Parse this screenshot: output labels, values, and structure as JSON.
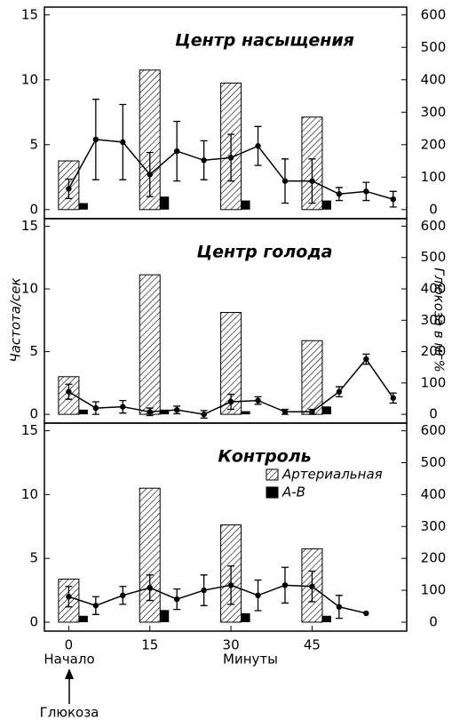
{
  "figure": {
    "ylabel": "Частота/сек",
    "y2label": "Глюкоза в мг%",
    "xlabel": "Минуты",
    "annotations": [
      "Начало",
      "Глюкоза"
    ]
  },
  "chart_data": [
    {
      "type": "combo",
      "title": "Центр насыщения",
      "xlim": [
        -4.5,
        62.5
      ],
      "ylim": [
        -0.7,
        15.6
      ],
      "yticks": [
        0,
        5,
        10,
        15
      ],
      "y2lim": [
        -28,
        624
      ],
      "y2ticks": [
        0,
        100,
        200,
        300,
        400,
        500,
        600
      ],
      "legend": false,
      "series": [
        {
          "name": "Артериальная",
          "type": "bar",
          "axis": "y2",
          "pattern": "hatch",
          "color": "#000",
          "x": [
            0,
            15,
            30,
            45
          ],
          "values": [
            150,
            430,
            390,
            285
          ]
        },
        {
          "name": "А-В",
          "type": "bar",
          "axis": "y2",
          "color": "#000",
          "x": [
            0,
            15,
            30,
            45
          ],
          "values": [
            20,
            40,
            28,
            28
          ]
        },
        {
          "type": "line",
          "color": "#000",
          "x": [
            0,
            5,
            10,
            15,
            20,
            25,
            30,
            35,
            40,
            45,
            50,
            55,
            60
          ],
          "values": [
            1.6,
            5.4,
            5.2,
            2.7,
            4.5,
            3.8,
            4.0,
            4.9,
            2.2,
            2.2,
            1.2,
            1.4,
            0.8
          ],
          "errors": [
            0.75,
            3.1,
            2.9,
            1.7,
            2.3,
            1.5,
            1.8,
            1.5,
            1.7,
            1.7,
            0.5,
            0.7,
            0.6
          ]
        }
      ]
    },
    {
      "type": "combo",
      "title": "Центр голода",
      "xlim": [
        -4.5,
        62.5
      ],
      "ylim": [
        -0.7,
        15.6
      ],
      "yticks": [
        0,
        5,
        10,
        15
      ],
      "y2lim": [
        -28,
        624
      ],
      "y2ticks": [
        0,
        100,
        200,
        300,
        400,
        500,
        600
      ],
      "legend": false,
      "series": [
        {
          "name": "Артериальная",
          "type": "bar",
          "axis": "y2",
          "pattern": "hatch",
          "color": "#000",
          "x": [
            0,
            15,
            30,
            45
          ],
          "values": [
            120,
            445,
            325,
            235
          ]
        },
        {
          "name": "А-В",
          "type": "bar",
          "axis": "y2",
          "color": "#000",
          "x": [
            0,
            15,
            30,
            45
          ],
          "values": [
            15,
            15,
            10,
            25
          ]
        },
        {
          "type": "line",
          "color": "#000",
          "x": [
            0,
            5,
            10,
            15,
            20,
            25,
            30,
            35,
            40,
            45,
            50,
            55,
            60
          ],
          "values": [
            1.8,
            0.5,
            0.6,
            0.2,
            0.35,
            0,
            1.0,
            1.1,
            0.2,
            0.2,
            1.8,
            4.4,
            1.3
          ],
          "errors": [
            0.6,
            0.5,
            0.5,
            0.3,
            0.3,
            0.3,
            0.6,
            0.3,
            0.2,
            0.2,
            0.4,
            0.4,
            0.4
          ]
        }
      ]
    },
    {
      "type": "combo",
      "title": "Контроль",
      "xlim": [
        -4.5,
        62.5
      ],
      "xticks": [
        0,
        15,
        30,
        45
      ],
      "ylim": [
        -0.7,
        15.6
      ],
      "yticks": [
        0,
        5,
        10,
        15
      ],
      "y2lim": [
        -28,
        624
      ],
      "y2ticks": [
        0,
        100,
        200,
        300,
        400,
        500,
        600
      ],
      "legend": true,
      "series": [
        {
          "name": "Артериальная",
          "type": "bar",
          "axis": "y2",
          "pattern": "hatch",
          "color": "#000",
          "x": [
            0,
            15,
            30,
            45
          ],
          "values": [
            135,
            420,
            305,
            230
          ]
        },
        {
          "name": "А-В",
          "type": "bar",
          "axis": "y2",
          "color": "#000",
          "x": [
            0,
            15,
            30,
            45
          ],
          "values": [
            20,
            38,
            28,
            20
          ]
        },
        {
          "type": "line",
          "color": "#000",
          "x": [
            0,
            5,
            10,
            15,
            20,
            25,
            30,
            35,
            40,
            45,
            50,
            55
          ],
          "values": [
            2.0,
            1.3,
            2.1,
            2.7,
            1.8,
            2.5,
            2.9,
            2.1,
            2.9,
            2.8,
            1.2,
            0.7
          ],
          "errors": [
            0.8,
            0.7,
            0.7,
            1.0,
            0.8,
            1.2,
            1.5,
            1.2,
            1.4,
            1.2,
            0.9,
            null
          ]
        }
      ]
    }
  ]
}
